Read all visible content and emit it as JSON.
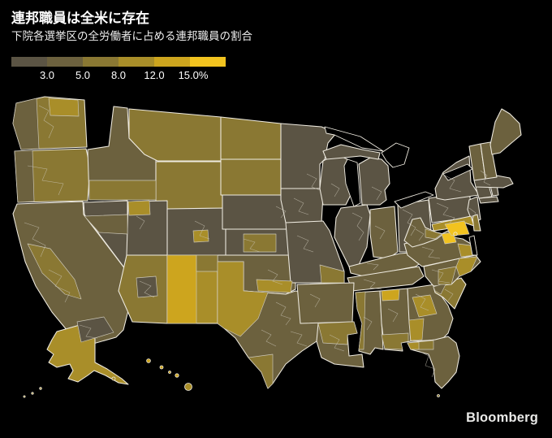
{
  "header": {
    "title": "連邦職員は全米に存在",
    "subtitle": "下院各選挙区の全労働者に占める連邦職員の割合"
  },
  "legend": {
    "ticks": [
      "3.0",
      "5.0",
      "8.0",
      "12.0",
      "15.0%"
    ],
    "colors": [
      "#5b5444",
      "#6c613e",
      "#8a7833",
      "#a98e29",
      "#cda51e",
      "#f2c31f"
    ]
  },
  "brand": {
    "label": "Bloomberg"
  },
  "colors": {
    "background": "#000000",
    "state_border": "#efebe0",
    "district_border": "#ccc7b8"
  },
  "chart_data": {
    "type": "choropleth_map",
    "title": "連邦職員は全米に存在",
    "subtitle": "下院各選挙区の全労働者に占める連邦職員の割合",
    "unit": "percent of all workers, by U.S. House district",
    "legend_boundaries": [
      3.0,
      5.0,
      8.0,
      12.0,
      15.0
    ],
    "bins": [
      {
        "range": "<3.0",
        "color": "#5b5444"
      },
      {
        "range": "3.0-5.0",
        "color": "#6c613e"
      },
      {
        "range": "5.0-8.0",
        "color": "#8a7833"
      },
      {
        "range": "8.0-12.0",
        "color": "#a98e29"
      },
      {
        "range": "12.0-15.0",
        "color": "#cda51e"
      },
      {
        "range": "15.0%+",
        "color": "#f2c31f"
      }
    ],
    "regions": [
      {
        "id": "WA",
        "bin": 2
      },
      {
        "id": "OR",
        "bin": 2
      },
      {
        "id": "CA",
        "bin": 1
      },
      {
        "id": "NV",
        "bin": 0
      },
      {
        "id": "ID",
        "bin": 1
      },
      {
        "id": "MT",
        "bin": 2
      },
      {
        "id": "WY",
        "bin": 2
      },
      {
        "id": "UT",
        "bin": 0
      },
      {
        "id": "CO",
        "bin": 0
      },
      {
        "id": "AZ",
        "bin": 2
      },
      {
        "id": "NM",
        "bin": 3
      },
      {
        "id": "ND",
        "bin": 2
      },
      {
        "id": "SD",
        "bin": 2
      },
      {
        "id": "NE",
        "bin": 0
      },
      {
        "id": "KS",
        "bin": 0
      },
      {
        "id": "OK",
        "bin": 1
      },
      {
        "id": "TX",
        "bin": 1
      },
      {
        "id": "MN",
        "bin": 0
      },
      {
        "id": "IA",
        "bin": 0
      },
      {
        "id": "MO",
        "bin": 0
      },
      {
        "id": "WI",
        "bin": 0
      },
      {
        "id": "IL",
        "bin": 0
      },
      {
        "id": "IN",
        "bin": 1
      },
      {
        "id": "OH",
        "bin": 0
      },
      {
        "id": "MI",
        "bin": 0
      },
      {
        "id": "MI-UP",
        "bin": 0
      },
      {
        "id": "KY",
        "bin": 1
      },
      {
        "id": "TN",
        "bin": 1
      },
      {
        "id": "AR",
        "bin": 1
      },
      {
        "id": "LA",
        "bin": 1
      },
      {
        "id": "MS",
        "bin": 1
      },
      {
        "id": "AL",
        "bin": 1
      },
      {
        "id": "GA",
        "bin": 1
      },
      {
        "id": "FL",
        "bin": 1
      },
      {
        "id": "SC",
        "bin": 2
      },
      {
        "id": "NC",
        "bin": 1
      },
      {
        "id": "VA",
        "bin": 1
      },
      {
        "id": "WV",
        "bin": 1
      },
      {
        "id": "PA",
        "bin": 0
      },
      {
        "id": "NY",
        "bin": 0
      },
      {
        "id": "NY-LI",
        "bin": 0
      },
      {
        "id": "NJ",
        "bin": 0
      },
      {
        "id": "MD",
        "bin": 3
      },
      {
        "id": "DE",
        "bin": 2
      },
      {
        "id": "CT",
        "bin": 0
      },
      {
        "id": "RI",
        "bin": 0
      },
      {
        "id": "MA",
        "bin": 0
      },
      {
        "id": "VT",
        "bin": 1
      },
      {
        "id": "NH",
        "bin": 1
      },
      {
        "id": "ME",
        "bin": 1
      },
      {
        "id": "AK",
        "bin": 3
      },
      {
        "id": "WA-west",
        "bin": 1,
        "patch": true
      },
      {
        "id": "WA-peninsula",
        "bin": 3,
        "patch": true
      },
      {
        "id": "OR-coast",
        "bin": 1,
        "patch": true
      },
      {
        "id": "CA-central",
        "bin": 2,
        "patch": true
      },
      {
        "id": "CA-la",
        "bin": 0,
        "patch": true
      },
      {
        "id": "NV-band",
        "bin": 1,
        "patch": true
      },
      {
        "id": "ID-south",
        "bin": 2,
        "patch": true
      },
      {
        "id": "UT-north",
        "bin": 3,
        "patch": true
      },
      {
        "id": "CO-springs",
        "bin": 3,
        "patch": true
      },
      {
        "id": "AZ-phoenix",
        "bin": 0,
        "patch": true
      },
      {
        "id": "NM-west",
        "bin": 4,
        "patch": true
      },
      {
        "id": "NM-ne",
        "bin": 2,
        "patch": true
      },
      {
        "id": "KS-central",
        "bin": 2,
        "patch": true
      },
      {
        "id": "OK-south",
        "bin": 3,
        "patch": true
      },
      {
        "id": "TX-west",
        "bin": 3,
        "patch": true
      },
      {
        "id": "TX-south",
        "bin": 2,
        "patch": true
      },
      {
        "id": "MO-se",
        "bin": 2,
        "patch": true
      },
      {
        "id": "LA-central",
        "bin": 2,
        "patch": true
      },
      {
        "id": "MS-west",
        "bin": 2,
        "patch": true
      },
      {
        "id": "AL-huntsville",
        "bin": 4,
        "patch": true
      },
      {
        "id": "AL-south",
        "bin": 2,
        "patch": true
      },
      {
        "id": "GA-central",
        "bin": 3,
        "patch": true
      },
      {
        "id": "GA-sw",
        "bin": 3,
        "patch": true
      },
      {
        "id": "FL-panhandle",
        "bin": 2,
        "patch": true
      },
      {
        "id": "FL-tip",
        "bin": 3,
        "patch": true
      },
      {
        "id": "SC-upstate",
        "bin": 1,
        "patch": true
      },
      {
        "id": "NC-east",
        "bin": 3,
        "patch": true
      },
      {
        "id": "NC-central",
        "bin": 2,
        "patch": true
      },
      {
        "id": "VA-north",
        "bin": 5,
        "patch": true
      },
      {
        "id": "VA-coast",
        "bin": 3,
        "patch": true
      },
      {
        "id": "WV-east",
        "bin": 2,
        "patch": true
      },
      {
        "id": "MD-capital",
        "bin": 5,
        "patch": true
      },
      {
        "id": "AK-kodiak",
        "bin": 3
      },
      {
        "id": "AK-aleutian-1",
        "bin": 3
      },
      {
        "id": "AK-aleutian-2",
        "bin": 3
      },
      {
        "id": "AK-aleutian-3",
        "bin": 3
      },
      {
        "id": "HI-kauai",
        "bin": 4
      },
      {
        "id": "HI-oahu",
        "bin": 4
      },
      {
        "id": "HI-molokai",
        "bin": 4
      },
      {
        "id": "HI-maui",
        "bin": 4
      },
      {
        "id": "HI-hawaii",
        "bin": 3
      },
      {
        "id": "FL-keys",
        "bin": 2
      },
      {
        "id": "DC",
        "bin": 5
      }
    ]
  }
}
